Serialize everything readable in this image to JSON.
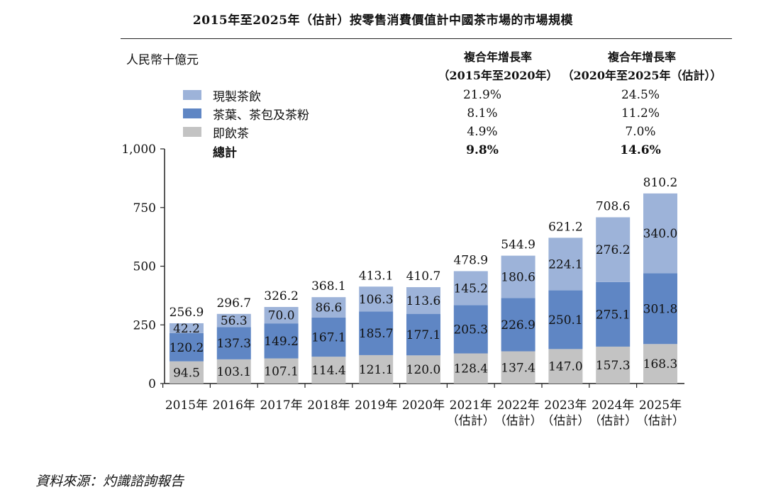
{
  "title": "2015年至2025年（估計）按零售消費價值計中國茶市場的市場規模",
  "unit_label": "人民幣十億元",
  "cagr_headers": [
    {
      "line1": "複合年增長率",
      "line2": "（2015年至2020年）"
    },
    {
      "line1": "複合年增長率",
      "line2": "（2020年至2025年（估計））"
    }
  ],
  "legend": [
    {
      "label": "現製茶飲",
      "color": "#9db3d9",
      "cagr_2015_2020": "21.9%",
      "cagr_2020_2025": "24.5%"
    },
    {
      "label": "茶葉、茶包及茶粉",
      "color": "#5f86c4",
      "cagr_2015_2020": "8.1%",
      "cagr_2020_2025": "11.2%"
    },
    {
      "label": "即飲茶",
      "color": "#c3c3c3",
      "cagr_2015_2020": "4.9%",
      "cagr_2020_2025": "7.0%"
    }
  ],
  "total": {
    "label": "總計",
    "cagr_2015_2020": "9.8%",
    "cagr_2020_2025": "14.6%"
  },
  "chart_data": {
    "type": "bar",
    "stacked": true,
    "title": "2015年至2025年（估計）按零售消費價值計中國茶市場的市場規模",
    "ylabel": "人民幣十億元",
    "ylim": [
      0,
      1000
    ],
    "yticks": [
      "0",
      "250",
      "500",
      "750",
      "1,000"
    ],
    "categories": [
      [
        "2015年"
      ],
      [
        "2016年"
      ],
      [
        "2017年"
      ],
      [
        "2018年"
      ],
      [
        "2019年"
      ],
      [
        "2020年"
      ],
      [
        "2021年",
        "（估計）"
      ],
      [
        "2022年",
        "（估計）"
      ],
      [
        "2023年",
        "（估計）"
      ],
      [
        "2024年",
        "（估計）"
      ],
      [
        "2025年",
        "（估計）"
      ]
    ],
    "series": [
      {
        "name": "即飲茶",
        "color": "#c3c3c3",
        "values": [
          94.5,
          103.1,
          107.1,
          114.4,
          121.1,
          120.0,
          128.4,
          137.4,
          147.0,
          157.3,
          168.3
        ],
        "labels": [
          "94.5",
          "103.1",
          "107.1",
          "114.4",
          "121.1",
          "120.0",
          "128.4",
          "137.4",
          "147.0",
          "157.3",
          "168.3"
        ]
      },
      {
        "name": "茶葉、茶包及茶粉",
        "color": "#5f86c4",
        "values": [
          120.2,
          137.3,
          149.2,
          167.1,
          185.7,
          177.1,
          205.3,
          226.9,
          250.1,
          275.1,
          301.8
        ],
        "labels": [
          "120.2",
          "137.3",
          "149.2",
          "167.1",
          "185.7",
          "177.1",
          "205.3",
          "226.9",
          "250.1",
          "275.1",
          "301.8"
        ]
      },
      {
        "name": "現製茶飲",
        "color": "#9db3d9",
        "values": [
          42.2,
          56.3,
          70.0,
          86.6,
          106.3,
          113.6,
          145.2,
          180.6,
          224.1,
          276.2,
          340.0
        ],
        "labels": [
          "42.2",
          "56.3",
          "70.0",
          "86.6",
          "106.3",
          "113.6",
          "145.2",
          "180.6",
          "224.1",
          "276.2",
          "340.0"
        ]
      }
    ],
    "totals": [
      256.9,
      296.7,
      326.2,
      368.1,
      413.1,
      410.7,
      478.9,
      544.9,
      621.2,
      708.6,
      810.2
    ],
    "total_labels": [
      "256.9",
      "296.7",
      "326.2",
      "368.1",
      "413.1",
      "410.7",
      "478.9",
      "544.9",
      "621.2",
      "708.6",
      "810.2"
    ],
    "grid": false,
    "legend_position": "top-left"
  },
  "source": "資料來源：灼識諮詢報告"
}
